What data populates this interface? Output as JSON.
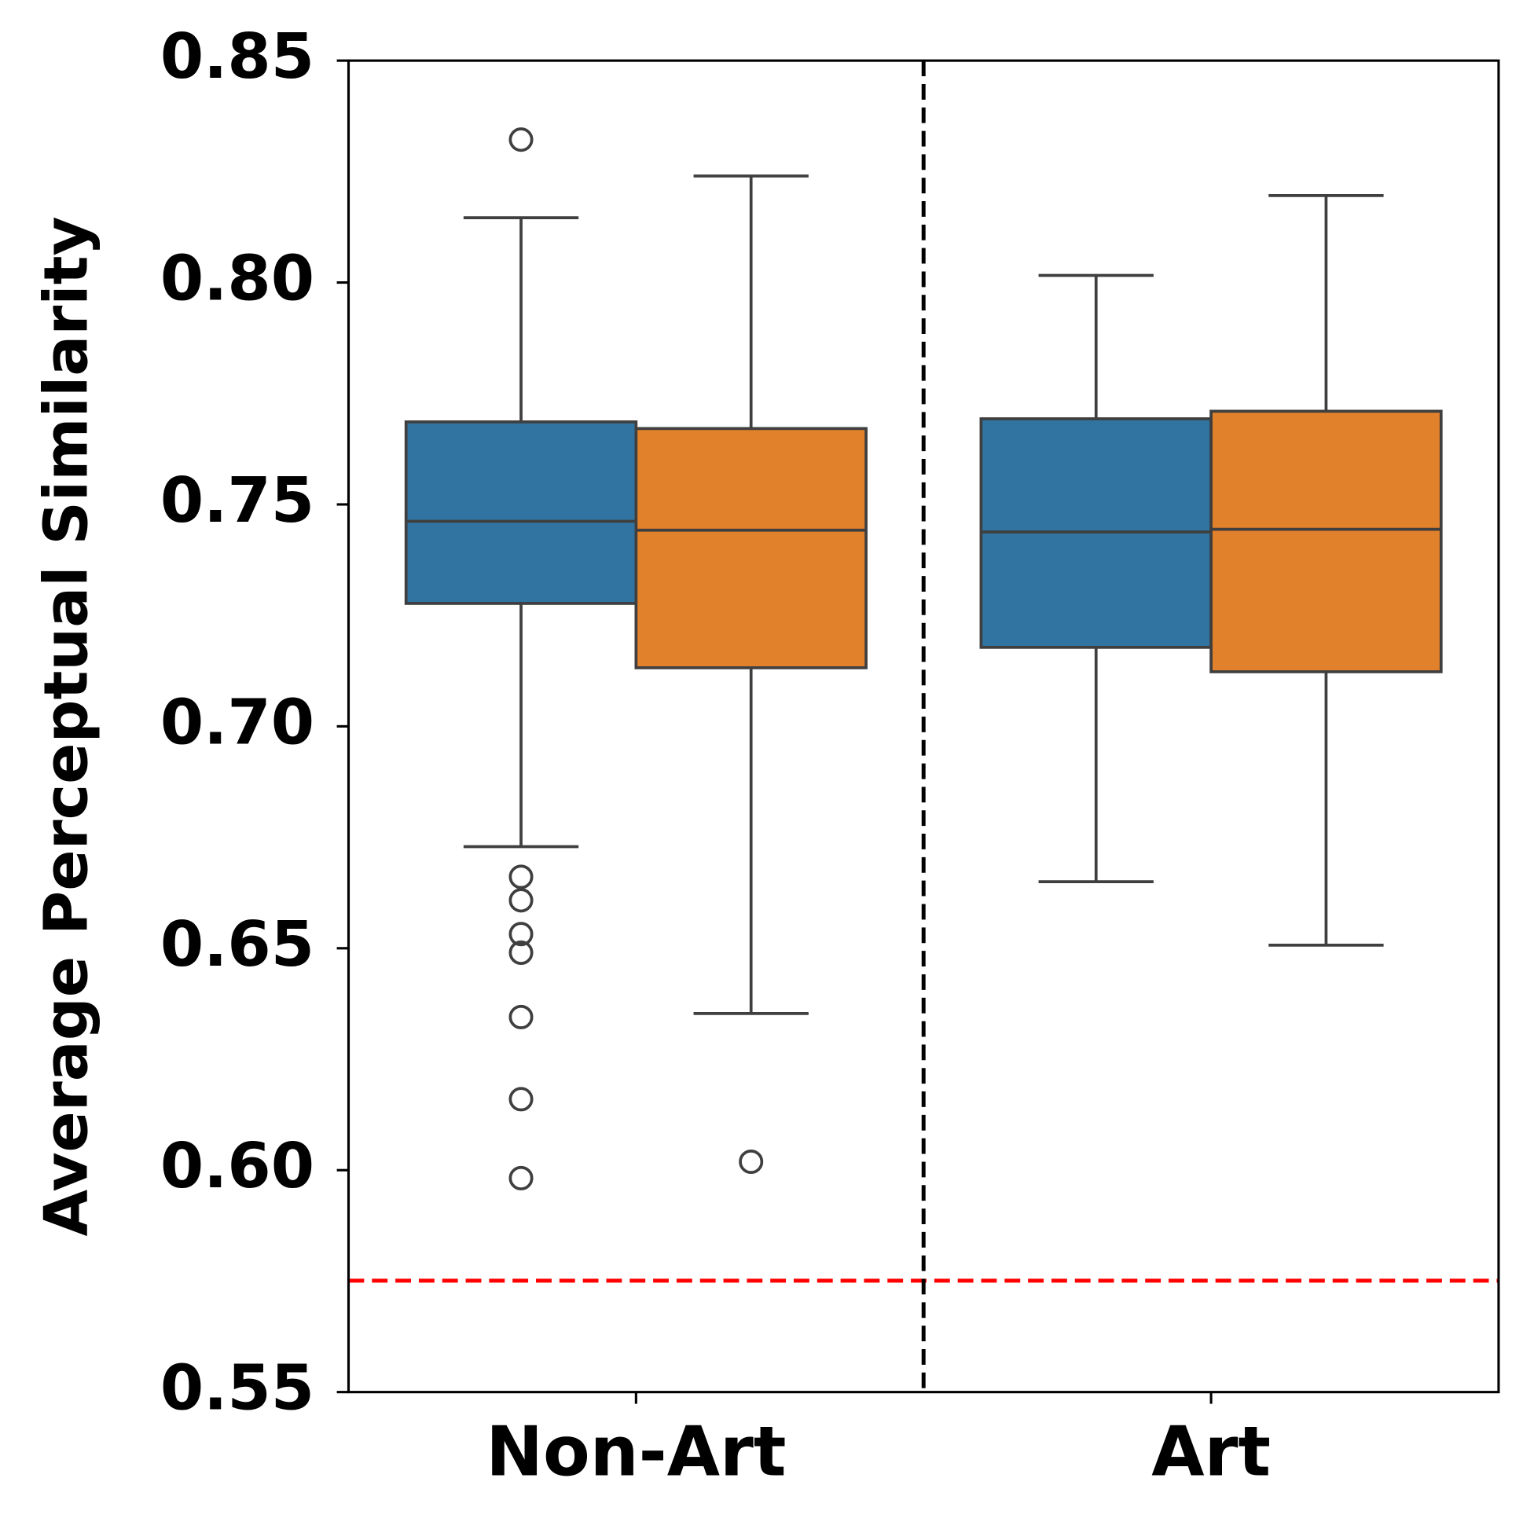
{
  "chart_data": {
    "type": "box",
    "ylabel": "Average Perceptual Similarity",
    "categories": [
      "Non-Art",
      "Art"
    ],
    "series": [
      {
        "color": "#3274a1",
        "boxes": [
          {
            "whislo": 0.6729,
            "q1": 0.7277,
            "med": 0.7462,
            "q3": 0.7686,
            "whishi": 0.8146,
            "fliers": [
              0.8322,
              0.6661,
              0.6608,
              0.6532,
              0.649,
              0.6345,
              0.616,
              0.5982
            ]
          },
          {
            "whislo": 0.665,
            "q1": 0.7178,
            "med": 0.7438,
            "q3": 0.7693,
            "whishi": 0.8016,
            "fliers": []
          }
        ]
      },
      {
        "color": "#e1812c",
        "boxes": [
          {
            "whislo": 0.6353,
            "q1": 0.7132,
            "med": 0.7442,
            "q3": 0.7671,
            "whishi": 0.824,
            "fliers": [
              0.6019
            ]
          },
          {
            "whislo": 0.6507,
            "q1": 0.7123,
            "med": 0.7444,
            "q3": 0.771,
            "whishi": 0.8196,
            "fliers": []
          }
        ]
      }
    ],
    "hline": {
      "value": 0.5751,
      "color": "#ff0000"
    },
    "ylim": [
      0.55,
      0.85
    ],
    "yticks": [
      0.55,
      {
        "value": 0.6,
        "label": "0.60"
      },
      0.65,
      {
        "value": 0.7,
        "label": "0.70"
      },
      0.75,
      {
        "value": 0.8,
        "label": "0.80"
      },
      0.85
    ]
  }
}
